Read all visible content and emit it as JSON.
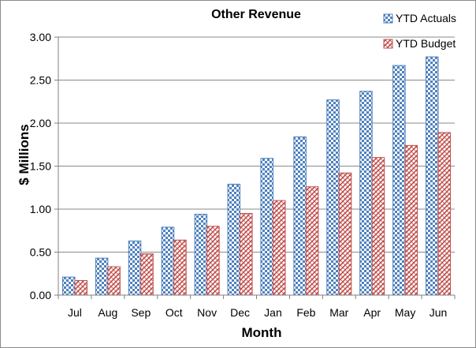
{
  "chart_data": {
    "type": "bar",
    "title": "Other Revenue",
    "xlabel": "Month",
    "ylabel": "$ Millions",
    "categories": [
      "Jul",
      "Aug",
      "Sep",
      "Oct",
      "Nov",
      "Dec",
      "Jan",
      "Feb",
      "Mar",
      "Apr",
      "May",
      "Jun"
    ],
    "series": [
      {
        "name": "YTD Actuals",
        "values": [
          0.21,
          0.43,
          0.63,
          0.79,
          0.94,
          1.29,
          1.59,
          1.84,
          2.27,
          2.37,
          2.67,
          2.77
        ],
        "color": "#4f81bd",
        "pattern": "checkerboard"
      },
      {
        "name": "YTD Budget",
        "values": [
          0.17,
          0.33,
          0.48,
          0.64,
          0.8,
          0.95,
          1.1,
          1.26,
          1.42,
          1.6,
          1.74,
          1.89
        ],
        "color": "#c0504d",
        "pattern": "diagonal-weave"
      }
    ],
    "ylim": [
      0,
      3.0
    ],
    "yticks": [
      "0.00",
      "0.50",
      "1.00",
      "1.50",
      "2.00",
      "2.50",
      "3.00"
    ],
    "grid": true,
    "legend_position": "top-right"
  }
}
